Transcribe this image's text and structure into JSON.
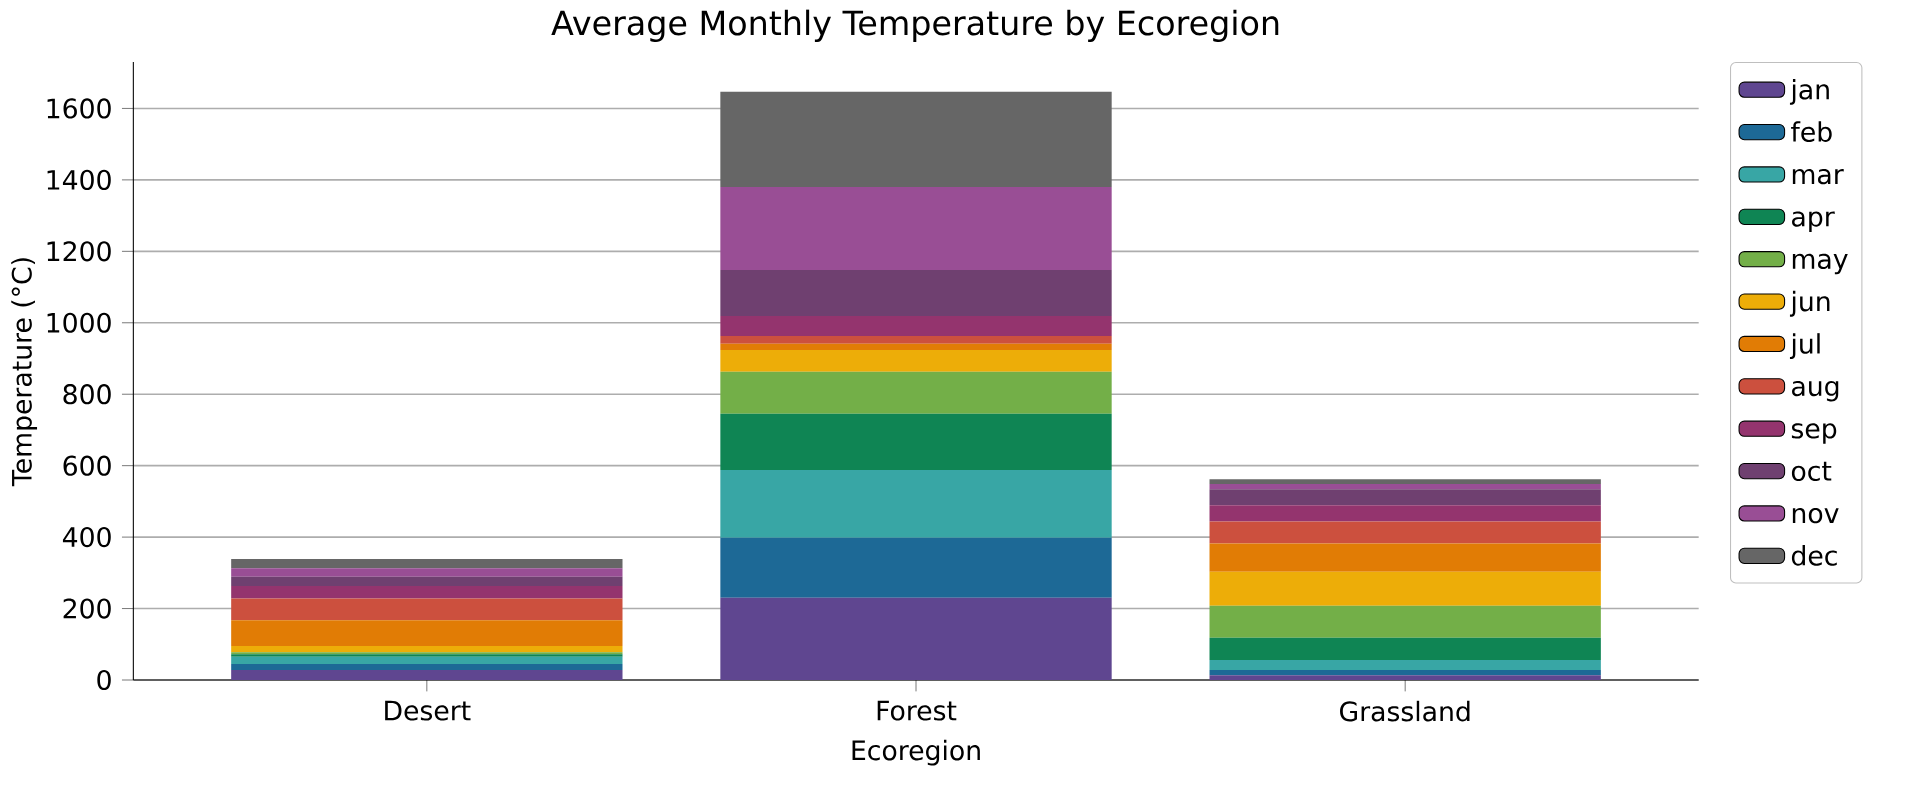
{
  "chart_data": {
    "type": "bar",
    "stacked": true,
    "title": "Average Monthly Temperature by Ecoregion",
    "xlabel": "Ecoregion",
    "ylabel": "Temperature (°C)",
    "categories": [
      "Desert",
      "Forest",
      "Grassland"
    ],
    "series": [
      {
        "name": "jan",
        "color": "#5f4690",
        "values": [
          28,
          230,
          13
        ]
      },
      {
        "name": "feb",
        "color": "#1d6996",
        "values": [
          17,
          168,
          15
        ]
      },
      {
        "name": "mar",
        "color": "#38a6a5",
        "values": [
          20,
          190,
          28
        ]
      },
      {
        "name": "apr",
        "color": "#0f8554",
        "values": [
          7,
          157,
          62
        ]
      },
      {
        "name": "may",
        "color": "#73af48",
        "values": [
          6,
          118,
          90
        ]
      },
      {
        "name": "jun",
        "color": "#edad08",
        "values": [
          17,
          61,
          95
        ]
      },
      {
        "name": "jul",
        "color": "#e17c05",
        "values": [
          72,
          17,
          79
        ]
      },
      {
        "name": "aug",
        "color": "#cc503e",
        "values": [
          61,
          22,
          62
        ]
      },
      {
        "name": "sep",
        "color": "#94346e",
        "values": [
          35,
          56,
          45
        ]
      },
      {
        "name": "oct",
        "color": "#6f4070",
        "values": [
          26,
          129,
          45
        ]
      },
      {
        "name": "nov",
        "color": "#994e95",
        "values": [
          24,
          232,
          15
        ]
      },
      {
        "name": "dec",
        "color": "#666666",
        "values": [
          26,
          267,
          13
        ]
      }
    ],
    "ylim": [
      0,
      1730
    ],
    "yticks": [
      0,
      200,
      400,
      600,
      800,
      1000,
      1200,
      1400,
      1600
    ],
    "grid": "y",
    "legend": "right"
  }
}
